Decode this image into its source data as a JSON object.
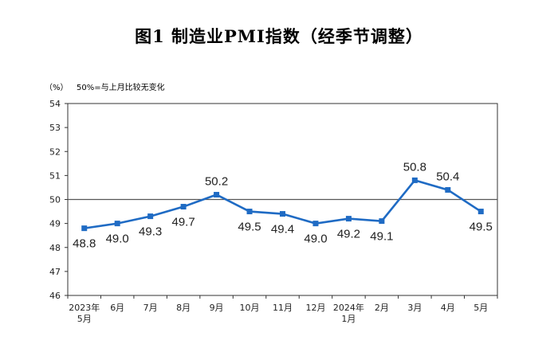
{
  "chart_data": {
    "type": "line",
    "title": "图1 制造业PMI指数（经季节调整）",
    "y_unit": "（%）",
    "note": "50%=与上月比较无变化",
    "categories": [
      [
        "2023年",
        "5月"
      ],
      [
        "6月"
      ],
      [
        "7月"
      ],
      [
        "8月"
      ],
      [
        "9月"
      ],
      [
        "10月"
      ],
      [
        "11月"
      ],
      [
        "12月"
      ],
      [
        "2024年",
        "1月"
      ],
      [
        "2月"
      ],
      [
        "3月"
      ],
      [
        "4月"
      ],
      [
        "5月"
      ]
    ],
    "values": [
      48.8,
      49.0,
      49.3,
      49.7,
      50.2,
      49.5,
      49.4,
      49.0,
      49.2,
      49.1,
      50.8,
      50.4,
      49.5
    ],
    "data_labels": [
      "48.8",
      "49.0",
      "49.3",
      "49.7",
      "50.2",
      "49.5",
      "49.4",
      "49.0",
      "49.2",
      "49.1",
      "50.8",
      "50.4",
      "49.5"
    ],
    "yticks": [
      "46",
      "47",
      "48",
      "49",
      "50",
      "51",
      "52",
      "53",
      "54"
    ],
    "ylim": [
      46,
      54
    ],
    "reference_line": 50,
    "grid": false,
    "line_color": "#1f6bc4",
    "reference_color": "#555555"
  }
}
